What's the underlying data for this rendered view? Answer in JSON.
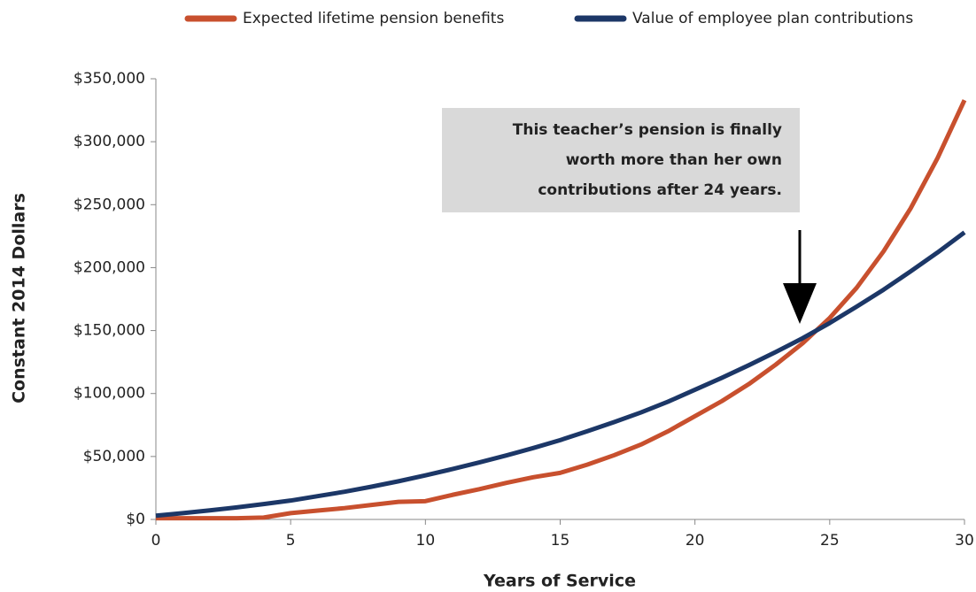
{
  "chart_data": {
    "type": "line",
    "x": [
      0,
      1,
      2,
      3,
      4,
      5,
      6,
      7,
      8,
      9,
      10,
      11,
      12,
      13,
      14,
      15,
      16,
      17,
      18,
      19,
      20,
      21,
      22,
      23,
      24,
      25,
      26,
      27,
      28,
      29,
      30
    ],
    "series": [
      {
        "name": "Expected lifetime pension benefits",
        "color": "#c8502e",
        "values": [
          1000,
          1000,
          1000,
          1000,
          1500,
          5000,
          7000,
          9000,
          11500,
          14000,
          14500,
          19500,
          24000,
          29000,
          33500,
          37000,
          43500,
          51000,
          59500,
          70000,
          82000,
          94000,
          107500,
          123000,
          140000,
          160000,
          184000,
          213000,
          247000,
          287000,
          333000
        ]
      },
      {
        "name": "Value of employee plan contributions",
        "color": "#1c3767",
        "values": [
          3000,
          5000,
          7200,
          9600,
          12200,
          15000,
          18500,
          22000,
          26000,
          30300,
          35000,
          40000,
          45300,
          50800,
          56700,
          63000,
          70000,
          77300,
          85000,
          93500,
          103000,
          112500,
          122500,
          133000,
          144000,
          156000,
          169000,
          182500,
          197000,
          212000,
          228000
        ]
      }
    ],
    "xlabel": "Years of Service",
    "ylabel": "Constant 2014 Dollars",
    "xlim": [
      0,
      30
    ],
    "xticks": [
      0,
      5,
      10,
      15,
      20,
      25,
      30
    ],
    "ylim": [
      0,
      350000
    ],
    "yticks": [
      {
        "value": 0,
        "label": "$0"
      },
      {
        "value": 50000,
        "label": "$50,000"
      },
      {
        "value": 100000,
        "label": "$100,000"
      },
      {
        "value": 150000,
        "label": "$150,000"
      },
      {
        "value": 200000,
        "label": "$200,000"
      },
      {
        "value": 250000,
        "label": "$250,000"
      },
      {
        "value": 300000,
        "label": "$300,000"
      },
      {
        "value": 350000,
        "label": "$350,000"
      }
    ],
    "legend": "top",
    "annotation": [
      "This teacher’s pension is finally",
      "worth more than her own",
      "contributions after 24 years."
    ]
  }
}
